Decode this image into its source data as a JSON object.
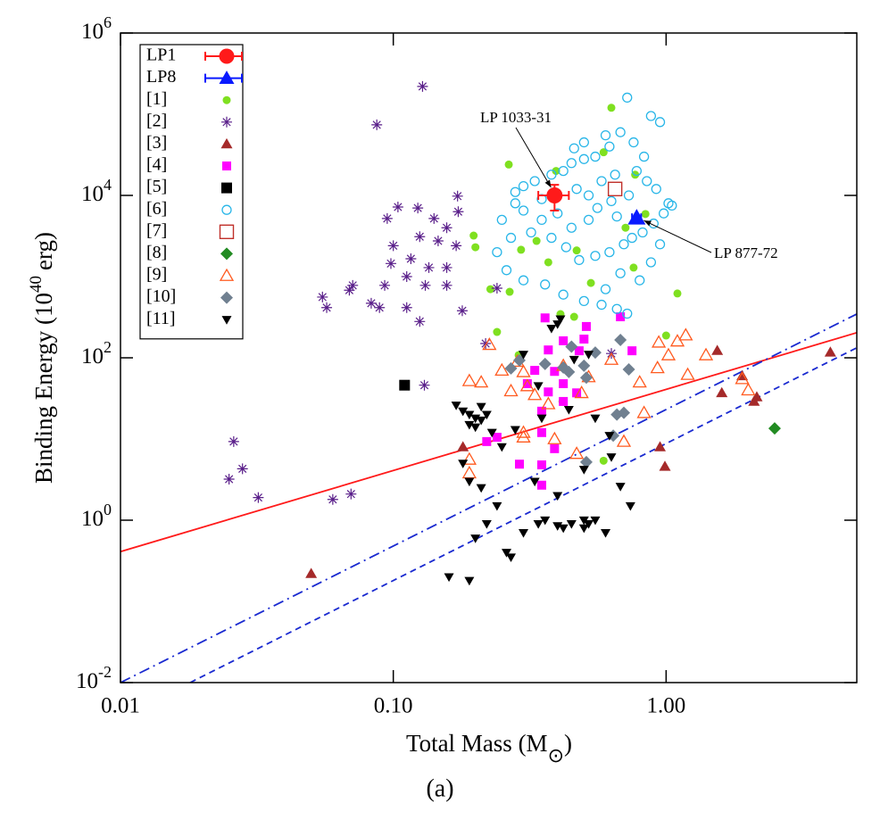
{
  "chart_data": {
    "type": "scatter",
    "x_label": "Total Mass  (M",
    "x_label_sub": "⊙",
    "x_label_end": ")",
    "y_label": "Binding Energy (10",
    "y_label_exp": "40",
    "y_label_end": "erg)",
    "caption": "(a)",
    "log_x": true,
    "log_y": true,
    "legend": "upper left",
    "xlim": [
      0.01,
      5
    ],
    "ylim": [
      0.01,
      1000000
    ],
    "xticks": [
      {
        "value": 0.01,
        "label": "0.01"
      },
      {
        "value": 0.1,
        "label": "0.10"
      },
      {
        "value": 1,
        "label": "1.00"
      }
    ],
    "yticks": [
      {
        "value": 0.01,
        "label": "10",
        "exp": "-2"
      },
      {
        "value": 1,
        "label": "10",
        "exp": "0"
      },
      {
        "value": 100,
        "label": "10",
        "exp": "2"
      },
      {
        "value": 10000,
        "label": "10",
        "exp": "4"
      },
      {
        "value": 1000000,
        "label": "10",
        "exp": "6"
      }
    ],
    "series": [
      {
        "name": "LP1",
        "marker": "circle-filled",
        "color": "#ff1a1a",
        "size": 9,
        "x": [
          0.39
        ],
        "values": [
          10000
        ],
        "xerr": [
          0.05
        ],
        "yerr": [
          3500
        ]
      },
      {
        "name": "LP8",
        "marker": "triangle-filled",
        "color": "#0a1aff",
        "size": 10,
        "x": [
          0.78
        ],
        "values": [
          5300
        ],
        "xerr": [
          0.03
        ]
      },
      {
        "name": "[1]",
        "marker": "circle-filled",
        "color": "#7fe020",
        "size": 4.5,
        "x": [
          0.63,
          0.265,
          0.395,
          0.59,
          0.77,
          0.84,
          0.197,
          0.335,
          0.294,
          0.47,
          0.71,
          0.227,
          0.267,
          0.76,
          0.53,
          0.41,
          1.0,
          0.288,
          0.46,
          0.417,
          0.59,
          1.1,
          0.2,
          0.37,
          0.24
        ],
        "values": [
          120000,
          24000,
          20000,
          34000,
          18000,
          5900,
          3200,
          2750,
          2140,
          2100,
          4000,
          700,
          650,
          1290,
          835,
          345,
          188,
          108,
          320,
          29,
          5.4,
          620,
          2300,
          1500,
          208
        ]
      },
      {
        "name": "[2]",
        "marker": "asterisk",
        "color": "#5a1f8a",
        "size": 6,
        "x": [
          0.128,
          0.087,
          0.172,
          0.123,
          0.141,
          0.157,
          0.125,
          0.146,
          0.17,
          0.1,
          0.116,
          0.135,
          0.157,
          0.112,
          0.093,
          0.071,
          0.069,
          0.055,
          0.057,
          0.089,
          0.112,
          0.083,
          0.125,
          0.179,
          0.157,
          0.131,
          0.173,
          0.104,
          0.095,
          0.098,
          0.218,
          0.13,
          0.026,
          0.028,
          0.025,
          0.032,
          0.06,
          0.07,
          0.24,
          0.63
        ],
        "values": [
          220000,
          74000,
          9800,
          7000,
          5200,
          4000,
          3100,
          2750,
          2400,
          2400,
          1660,
          1290,
          1290,
          1000,
          780,
          780,
          680,
          560,
          415,
          415,
          415,
          470,
          280,
          380,
          780,
          780,
          6300,
          7200,
          5200,
          1450,
          150,
          46,
          9.3,
          4.3,
          3.2,
          1.9,
          1.8,
          2.1,
          720,
          113
        ]
      },
      {
        "name": "[3]",
        "marker": "triangle-filled",
        "color": "#a52a2a",
        "size": 6.5,
        "x": [
          0.05,
          0.18,
          0.95,
          0.99,
          1.54,
          1.6,
          1.9,
          2.1,
          2.15,
          4.0
        ],
        "values": [
          0.22,
          8.0,
          8.0,
          4.6,
          123,
          37,
          60,
          29,
          33,
          117
        ]
      },
      {
        "name": "[4]",
        "marker": "square-filled",
        "color": "#ff00ff",
        "size": 5,
        "x": [
          0.36,
          0.68,
          0.51,
          0.5,
          0.42,
          0.37,
          0.75,
          0.48,
          0.33,
          0.39,
          0.42,
          0.35,
          0.31,
          0.42,
          0.35,
          0.39,
          0.24,
          0.22,
          0.29,
          0.35,
          0.35,
          0.37,
          0.47
        ],
        "values": [
          310,
          320,
          243,
          170,
          162,
          125,
          122,
          122,
          70,
          68,
          48,
          22,
          48,
          29,
          12,
          7.6,
          10.5,
          9.3,
          4.9,
          4.8,
          2.7,
          38,
          37
        ]
      },
      {
        "name": "[5]",
        "marker": "square-filled",
        "color": "#000000",
        "size": 6,
        "x": [
          0.11
        ],
        "values": [
          46
        ]
      },
      {
        "name": "[6]",
        "marker": "circle-open",
        "color": "#29b6e8",
        "size": 5,
        "x": [
          0.72,
          0.88,
          0.95,
          0.68,
          0.62,
          0.55,
          0.5,
          0.45,
          0.42,
          0.38,
          0.33,
          0.3,
          0.28,
          0.35,
          0.47,
          0.52,
          0.58,
          0.65,
          0.78,
          0.85,
          0.92,
          1.02,
          1.05,
          0.98,
          0.9,
          0.82,
          0.75,
          0.7,
          0.62,
          0.55,
          0.48,
          0.43,
          0.38,
          0.32,
          0.27,
          0.24,
          0.26,
          0.3,
          0.36,
          0.42,
          0.5,
          0.58,
          0.66,
          0.72,
          0.6,
          0.68,
          0.8,
          0.88,
          0.95,
          0.4,
          0.45,
          0.52,
          0.56,
          0.63,
          0.73,
          0.66,
          0.35,
          0.3,
          0.25,
          0.28,
          0.5,
          0.6,
          0.76,
          0.83,
          0.46
        ],
        "values": [
          160000,
          95000,
          80000,
          60000,
          40000,
          30000,
          28000,
          25000,
          20000,
          18000,
          15000,
          13000,
          11000,
          9000,
          12000,
          10000,
          15000,
          18000,
          20000,
          15000,
          12000,
          8000,
          7500,
          6000,
          4500,
          3500,
          3000,
          2500,
          2000,
          1800,
          1600,
          2300,
          3000,
          3500,
          3000,
          2000,
          1200,
          900,
          800,
          600,
          500,
          450,
          400,
          350,
          700,
          1100,
          900,
          1500,
          2500,
          6000,
          4000,
          5000,
          7000,
          8500,
          10000,
          5500,
          5000,
          6500,
          5000,
          8000,
          45000,
          55000,
          45000,
          30000,
          38000
        ]
      },
      {
        "name": "[7]",
        "marker": "square-open",
        "color": "#c0302a",
        "size": 7.5,
        "x": [
          0.65
        ],
        "values": [
          12000
        ]
      },
      {
        "name": "[8]",
        "marker": "diamond-filled",
        "color": "#228b22",
        "size": 7,
        "x": [
          2.5
        ],
        "values": [
          13.5
        ]
      },
      {
        "name": "[9]",
        "marker": "triangle-open",
        "color": "#ff5a1f",
        "size": 7,
        "x": [
          0.225,
          0.19,
          0.21,
          0.27,
          0.285,
          0.25,
          0.3,
          0.31,
          0.33,
          0.37,
          0.42,
          0.49,
          0.52,
          0.63,
          0.8,
          0.93,
          1.02,
          1.1,
          1.18,
          0.94,
          1.2,
          1.4,
          2.0,
          1.9,
          0.83,
          0.7,
          0.47,
          0.39,
          0.3,
          0.19,
          0.19,
          0.3
        ],
        "values": [
          145,
          52,
          50,
          39,
          90,
          70,
          67,
          45,
          35,
          27,
          80,
          37,
          58,
          95,
          50,
          75,
          108,
          160,
          190,
          155,
          62,
          108,
          40,
          55,
          21,
          9.3,
          6.6,
          10,
          10.5,
          5.6,
          3.8,
          12
        ]
      },
      {
        "name": "[10]",
        "marker": "diamond-filled",
        "color": "#708090",
        "size": 7,
        "x": [
          0.27,
          0.29,
          0.36,
          0.45,
          0.42,
          0.5,
          0.51,
          0.55,
          0.68,
          0.73,
          0.66,
          0.7,
          0.64,
          0.51,
          0.44
        ],
        "values": [
          74,
          93,
          84,
          137,
          76,
          80,
          57,
          116,
          166,
          72,
          20,
          21,
          11,
          5.2,
          67
        ]
      },
      {
        "name": "[11]",
        "marker": "triangle-down-filled",
        "color": "#000000",
        "size": 5.5,
        "x": [
          0.17,
          0.18,
          0.19,
          0.2,
          0.21,
          0.19,
          0.2,
          0.22,
          0.21,
          0.23,
          0.18,
          0.19,
          0.21,
          0.24,
          0.22,
          0.2,
          0.16,
          0.19,
          0.26,
          0.27,
          0.3,
          0.34,
          0.36,
          0.4,
          0.42,
          0.45,
          0.5,
          0.52,
          0.55,
          0.5,
          0.6,
          0.33,
          0.4,
          0.5,
          0.63,
          0.68,
          0.74,
          0.55,
          0.62,
          0.44,
          0.38,
          0.4,
          0.41,
          0.3,
          0.34,
          0.46,
          0.52,
          0.25,
          0.28,
          0.35
        ],
        "values": [
          26,
          22,
          20,
          18,
          17,
          15,
          14,
          20,
          25,
          12,
          5,
          3,
          2.5,
          1.5,
          0.9,
          0.6,
          0.2,
          0.18,
          0.4,
          0.35,
          0.7,
          0.9,
          1.0,
          0.85,
          0.8,
          0.9,
          1.0,
          0.9,
          1.0,
          0.8,
          0.7,
          3,
          2,
          4.2,
          6,
          2.6,
          1.5,
          18,
          11,
          23,
          230,
          260,
          300,
          110,
          45,
          95,
          110,
          8,
          13,
          18
        ]
      }
    ],
    "lines": [
      {
        "color": "#ff1a1a",
        "dash": "solid",
        "x": [
          0.01,
          5
        ],
        "values": [
          0.41,
          204
        ]
      },
      {
        "color": "#1a2ad0",
        "dash": "dash-dot",
        "x": [
          0.01,
          5
        ],
        "values": [
          0.01,
          346
        ]
      },
      {
        "color": "#1a2ad0",
        "dash": "dash",
        "x": [
          0.018,
          5
        ],
        "values": [
          0.01,
          133
        ]
      }
    ],
    "annotations": [
      {
        "text": "LP 1033-31"
      },
      {
        "text": "LP 877-72"
      }
    ]
  }
}
